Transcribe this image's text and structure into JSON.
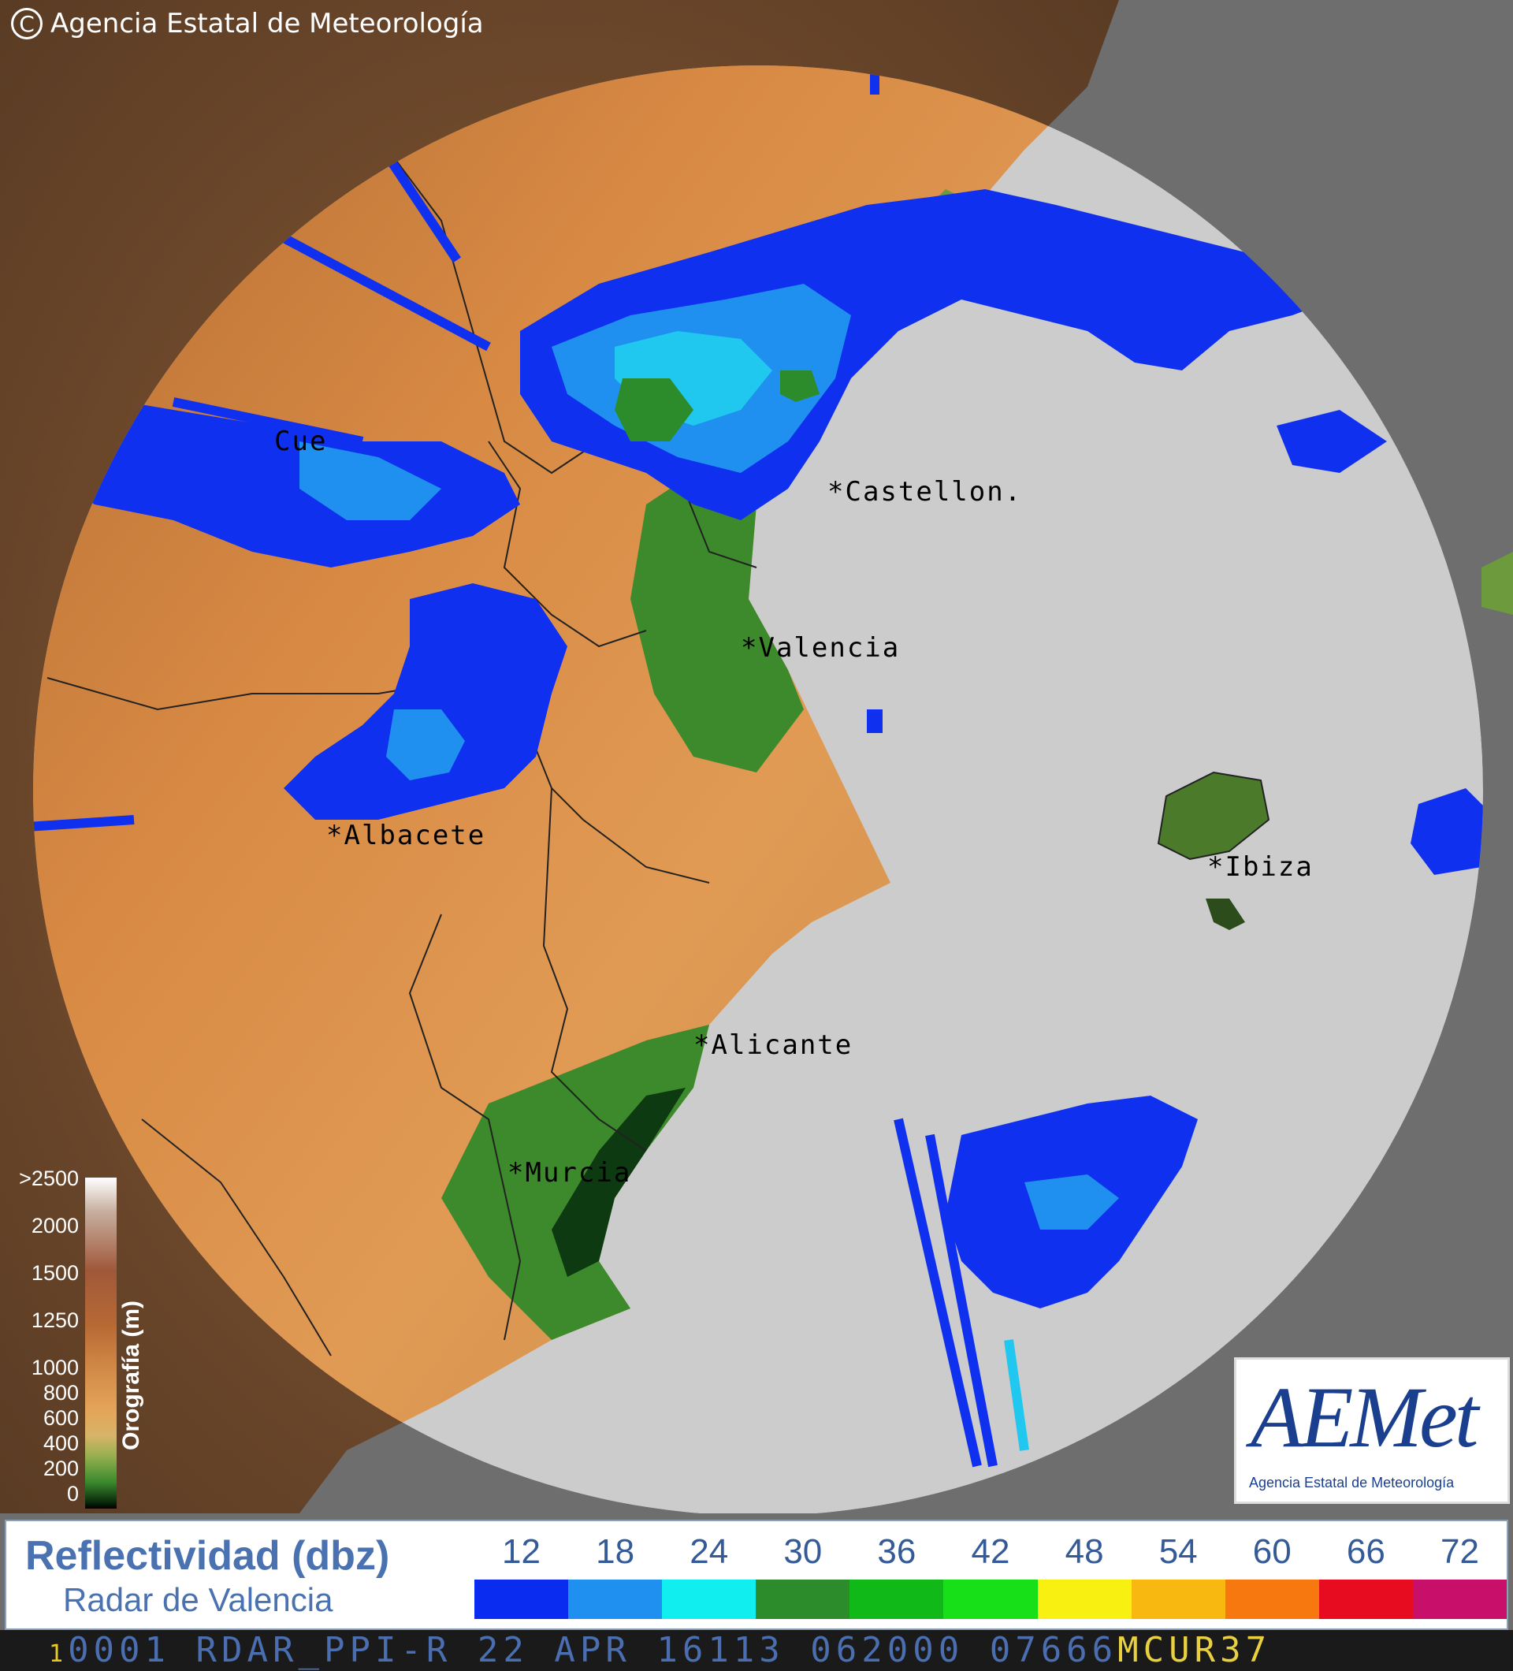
{
  "copyright": "Agencia Estatal de Meteorología",
  "cities": [
    {
      "name": "Cue"
    },
    {
      "name": "Castellon."
    },
    {
      "name": "Valencia"
    },
    {
      "name": "Albacete"
    },
    {
      "name": "Ibiza"
    },
    {
      "name": "Alicante"
    },
    {
      "name": "Murcia"
    }
  ],
  "orography": {
    "title": "Orografía (m)",
    "levels": [
      ">2500",
      "2000",
      "1500",
      "1250",
      "1000",
      "800",
      "600",
      "400",
      "200",
      "0"
    ]
  },
  "logo": {
    "main": "AEMet",
    "sub": "Agencia Estatal de Meteorología"
  },
  "legend": {
    "title": "Reflectividad (dbz)",
    "subtitle": "Radar de Valencia",
    "ticks": [
      "12",
      "18",
      "24",
      "30",
      "36",
      "42",
      "48",
      "54",
      "60",
      "66",
      "72"
    ],
    "colors": [
      "#0a2cf0",
      "#2090f0",
      "#10eef0",
      "#2c8c2c",
      "#10b818",
      "#18e018",
      "#f8f010",
      "#f8b810",
      "#f87810",
      "#e80c20",
      "#c8106a"
    ]
  },
  "status": {
    "prefix": "1",
    "line": "0001 RDAR_PPI-R   22 APR 16113 062000 07666",
    "suffix": "MCUR37"
  },
  "colors": {
    "sea": "#cccccc",
    "outside": "#6e6e6e",
    "echo_blue": "#1030f0",
    "echo_cyan": "#20c8f0"
  }
}
